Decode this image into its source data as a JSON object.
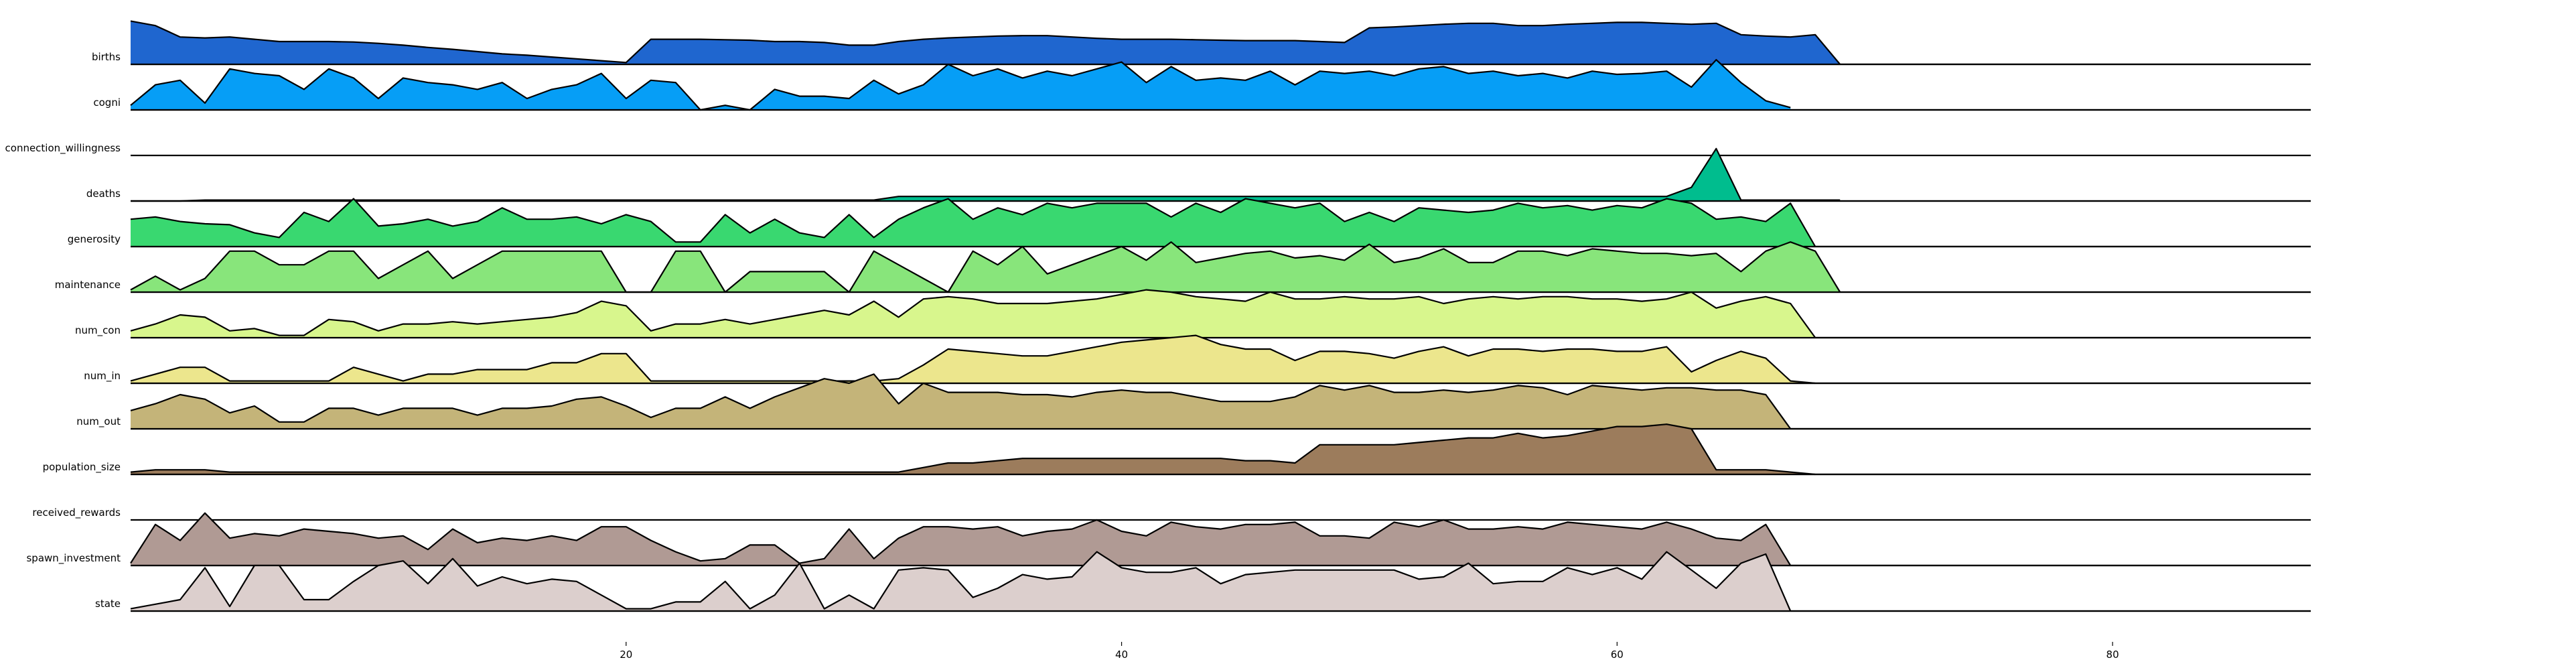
{
  "chart_data": {
    "type": "area",
    "subtype": "ridgeline",
    "title": "",
    "xlabel": "",
    "ylabel": "",
    "xlim": [
      0,
      88
    ],
    "x_ticks": [
      "20",
      "40",
      "60",
      "80"
    ],
    "grid": false,
    "legend": "none",
    "series": [
      {
        "name": "births",
        "color": "#1f66cf",
        "values": [
          0.95,
          0.85,
          0.6,
          0.58,
          0.6,
          0.55,
          0.5,
          0.5,
          0.5,
          0.49,
          0.46,
          0.42,
          0.37,
          0.33,
          0.28,
          0.23,
          0.2,
          0.16,
          0.12,
          0.08,
          0.04,
          0.55,
          0.55,
          0.55,
          0.54,
          0.53,
          0.5,
          0.5,
          0.48,
          0.42,
          0.42,
          0.5,
          0.55,
          0.58,
          0.6,
          0.62,
          0.63,
          0.63,
          0.6,
          0.57,
          0.55,
          0.55,
          0.55,
          0.54,
          0.53,
          0.52,
          0.52,
          0.52,
          0.5,
          0.48,
          0.8,
          0.82,
          0.85,
          0.88,
          0.9,
          0.9,
          0.85,
          0.85,
          0.88,
          0.9,
          0.92,
          0.92,
          0.9,
          0.88,
          0.9,
          0.65,
          0.62,
          0.6,
          0.65,
          0.0
        ]
      },
      {
        "name": "cogni",
        "color": "#069ef6",
        "values": [
          0.1,
          0.55,
          0.65,
          0.15,
          0.9,
          0.8,
          0.75,
          0.45,
          0.9,
          0.7,
          0.25,
          0.7,
          0.6,
          0.55,
          0.45,
          0.6,
          0.25,
          0.45,
          0.55,
          0.8,
          0.25,
          0.65,
          0.6,
          0.0,
          0.1,
          0.0,
          0.45,
          0.3,
          0.3,
          0.25,
          0.65,
          0.35,
          0.55,
          1.0,
          0.75,
          0.9,
          0.7,
          0.85,
          0.75,
          0.9,
          1.05,
          0.6,
          0.95,
          0.65,
          0.7,
          0.65,
          0.85,
          0.55,
          0.85,
          0.8,
          0.85,
          0.75,
          0.9,
          0.95,
          0.8,
          0.85,
          0.75,
          0.8,
          0.7,
          0.85,
          0.78,
          0.8,
          0.85,
          0.5,
          1.1,
          0.6,
          0.2,
          0.05
        ]
      },
      {
        "name": "connection_willingness",
        "color": "#00bd8e",
        "values": [
          0,
          0,
          0,
          0.02,
          0.02,
          0.02,
          0.02,
          0.02,
          0.02,
          0.02,
          0.02,
          0.02,
          0.02,
          0.02,
          0.02,
          0.02,
          0.02,
          0.02,
          0.02,
          0.02,
          0.02,
          0.02,
          0.02,
          0.02,
          0.02,
          0.02,
          0.02,
          0.02,
          0.02,
          0.02,
          0.02,
          0.1,
          0.1,
          0.1,
          0.1,
          0.1,
          0.1,
          0.1,
          0.1,
          0.1,
          0.1,
          0.1,
          0.1,
          0.1,
          0.1,
          0.1,
          0.1,
          0.1,
          0.1,
          0.1,
          0.1,
          0.1,
          0.1,
          0.1,
          0.1,
          0.1,
          0.1,
          0.1,
          0.1,
          0.1,
          0.1,
          0.1,
          0.1,
          0.3,
          1.15,
          0.02,
          0.02,
          0.02,
          0.02,
          0.02
        ]
      },
      {
        "name": "deaths",
        "color": "#39d870",
        "values": [
          0.6,
          0.65,
          0.55,
          0.5,
          0.48,
          0.3,
          0.2,
          0.75,
          0.55,
          1.05,
          0.45,
          0.5,
          0.6,
          0.45,
          0.55,
          0.85,
          0.6,
          0.6,
          0.65,
          0.5,
          0.7,
          0.55,
          0.1,
          0.1,
          0.7,
          0.3,
          0.6,
          0.3,
          0.2,
          0.7,
          0.2,
          0.6,
          0.85,
          1.05,
          0.6,
          0.85,
          0.7,
          0.95,
          0.85,
          0.95,
          0.95,
          0.95,
          0.65,
          0.95,
          0.75,
          1.05,
          0.95,
          0.85,
          0.95,
          0.55,
          0.75,
          0.55,
          0.85,
          0.8,
          0.75,
          0.8,
          0.95,
          0.85,
          0.9,
          0.8,
          0.9,
          0.85,
          1.05,
          0.95,
          0.6,
          0.65,
          0.55,
          0.95,
          0.0
        ]
      },
      {
        "name": "generosity",
        "color": "#88e57b",
        "values": [
          0.05,
          0.35,
          0.05,
          0.3,
          0.9,
          0.9,
          0.6,
          0.6,
          0.9,
          0.9,
          0.3,
          0.6,
          0.9,
          0.3,
          0.6,
          0.9,
          0.9,
          0.9,
          0.9,
          0.9,
          0.0,
          0.0,
          0.9,
          0.9,
          0.0,
          0.45,
          0.45,
          0.45,
          0.45,
          0.0,
          0.9,
          0.6,
          0.3,
          0.0,
          0.9,
          0.6,
          1.0,
          0.4,
          0.6,
          0.8,
          1.0,
          0.7,
          1.1,
          0.65,
          0.75,
          0.85,
          0.9,
          0.75,
          0.8,
          0.7,
          1.05,
          0.65,
          0.75,
          0.95,
          0.65,
          0.65,
          0.9,
          0.9,
          0.8,
          0.95,
          0.9,
          0.85,
          0.85,
          0.8,
          0.85,
          0.45,
          0.9,
          1.1,
          0.9,
          0.0
        ]
      },
      {
        "name": "maintenance",
        "color": "#d8f68d",
        "values": [
          0.15,
          0.3,
          0.5,
          0.45,
          0.15,
          0.2,
          0.05,
          0.05,
          0.4,
          0.35,
          0.15,
          0.3,
          0.3,
          0.35,
          0.3,
          0.35,
          0.4,
          0.45,
          0.55,
          0.8,
          0.7,
          0.15,
          0.3,
          0.3,
          0.4,
          0.3,
          0.4,
          0.5,
          0.6,
          0.5,
          0.8,
          0.45,
          0.85,
          0.9,
          0.85,
          0.75,
          0.75,
          0.75,
          0.8,
          0.85,
          0.95,
          1.05,
          1.0,
          0.9,
          0.85,
          0.8,
          1.0,
          0.85,
          0.85,
          0.9,
          0.85,
          0.85,
          0.9,
          0.75,
          0.85,
          0.9,
          0.85,
          0.9,
          0.9,
          0.85,
          0.85,
          0.8,
          0.85,
          1.0,
          0.65,
          0.8,
          0.9,
          0.75,
          0.0
        ]
      },
      {
        "name": "num_con",
        "color": "#ece68d",
        "values": [
          0.05,
          0.2,
          0.35,
          0.35,
          0.05,
          0.05,
          0.05,
          0.05,
          0.05,
          0.35,
          0.2,
          0.05,
          0.2,
          0.2,
          0.3,
          0.3,
          0.3,
          0.45,
          0.45,
          0.65,
          0.65,
          0.05,
          0.05,
          0.05,
          0.05,
          0.05,
          0.05,
          0.05,
          0.05,
          0.05,
          0.05,
          0.1,
          0.4,
          0.75,
          0.7,
          0.65,
          0.6,
          0.6,
          0.7,
          0.8,
          0.9,
          0.95,
          1.0,
          1.05,
          0.85,
          0.75,
          0.75,
          0.5,
          0.7,
          0.7,
          0.65,
          0.55,
          0.7,
          0.8,
          0.6,
          0.75,
          0.75,
          0.7,
          0.75,
          0.75,
          0.7,
          0.7,
          0.8,
          0.25,
          0.5,
          0.7,
          0.55,
          0.05,
          0.0
        ]
      },
      {
        "name": "num_in",
        "color": "#c4b479",
        "values": [
          0.4,
          0.55,
          0.75,
          0.65,
          0.35,
          0.5,
          0.15,
          0.15,
          0.45,
          0.45,
          0.3,
          0.45,
          0.45,
          0.45,
          0.3,
          0.45,
          0.45,
          0.5,
          0.65,
          0.7,
          0.5,
          0.25,
          0.45,
          0.45,
          0.7,
          0.45,
          0.7,
          0.9,
          1.1,
          1.0,
          1.2,
          0.55,
          1.0,
          0.8,
          0.8,
          0.8,
          0.75,
          0.75,
          0.7,
          0.8,
          0.85,
          0.8,
          0.8,
          0.7,
          0.6,
          0.6,
          0.6,
          0.7,
          0.95,
          0.85,
          0.95,
          0.8,
          0.8,
          0.85,
          0.8,
          0.85,
          0.95,
          0.9,
          0.75,
          0.95,
          0.9,
          0.85,
          0.9,
          0.9,
          0.85,
          0.85,
          0.75,
          0.0
        ]
      },
      {
        "name": "num_out",
        "color": "#9c7c5c",
        "values": [
          0.05,
          0.1,
          0.1,
          0.1,
          0.05,
          0.05,
          0.05,
          0.05,
          0.05,
          0.05,
          0.05,
          0.05,
          0.05,
          0.05,
          0.05,
          0.05,
          0.05,
          0.05,
          0.05,
          0.05,
          0.05,
          0.05,
          0.05,
          0.05,
          0.05,
          0.05,
          0.05,
          0.05,
          0.05,
          0.05,
          0.05,
          0.05,
          0.15,
          0.25,
          0.25,
          0.3,
          0.35,
          0.35,
          0.35,
          0.35,
          0.35,
          0.35,
          0.35,
          0.35,
          0.35,
          0.3,
          0.3,
          0.25,
          0.65,
          0.65,
          0.65,
          0.65,
          0.7,
          0.75,
          0.8,
          0.8,
          0.9,
          0.8,
          0.85,
          0.95,
          1.05,
          1.05,
          1.1,
          1.0,
          0.1,
          0.1,
          0.1,
          0.05,
          0.0
        ]
      },
      {
        "name": "population_size",
        "color": "#b09a94",
        "values": [
          0.1,
          0.15,
          0.15,
          0.15,
          0.15,
          0.15,
          0.15,
          0.15,
          0.15,
          0.15,
          0.15,
          0.15,
          0.15,
          0.15,
          0.15,
          0.15,
          0.15,
          0.15,
          0.15,
          0.15,
          0.15,
          0.15,
          0.15,
          0.15,
          0.15,
          0.15,
          0.15,
          0.15,
          0.15,
          0.15,
          0.15,
          0.15,
          0.15,
          0.15,
          0.15,
          0.15,
          0.15,
          0.15,
          0.15,
          0.15,
          0.15,
          0.15,
          0.15,
          0.15,
          0.15,
          0.15,
          0.15,
          0.15,
          0.15,
          0.15,
          0.15,
          0.15,
          0.15,
          0.15,
          0.15,
          0.15,
          0.15,
          0.15,
          0.15,
          0.15,
          0.15,
          0.15,
          0.15,
          0.15,
          0.15,
          0.15,
          0.15,
          0.15,
          0.05
        ]
      },
      {
        "name": "received_rewards",
        "color": "#d6cac8",
        "values": [
          0.05,
          0.9,
          0.55,
          1.15,
          0.6,
          0.7,
          0.65,
          0.8,
          0.75,
          0.7,
          0.6,
          0.65,
          0.35,
          0.8,
          0.5,
          0.6,
          0.55,
          0.65,
          0.55,
          0.85,
          0.85,
          0.55,
          0.3,
          0.1,
          0.15,
          0.45,
          0.45,
          0.05,
          0.15,
          0.8,
          0.15,
          0.6,
          0.85,
          0.85,
          0.8,
          0.85,
          0.65,
          0.75,
          0.8,
          1.0,
          0.75,
          0.65,
          0.95,
          0.85,
          0.8,
          0.9,
          0.9,
          0.95,
          0.65,
          0.65,
          0.6,
          0.95,
          0.85,
          1.0,
          0.8,
          0.8,
          0.85,
          0.8,
          0.95,
          0.9,
          0.85,
          0.8,
          0.95,
          0.8,
          0.6,
          0.55,
          0.9,
          0.0
        ]
      },
      {
        "name": "spawn_investment",
        "color": "#ffffff",
        "values": [
          0,
          0,
          0,
          0,
          0,
          0,
          0,
          0,
          0,
          0,
          0,
          0,
          0,
          0,
          0,
          0,
          0,
          0,
          0,
          0,
          0,
          0,
          0,
          0,
          0,
          0,
          0,
          0,
          0,
          0,
          0,
          0,
          0,
          0,
          0,
          0,
          0,
          0,
          0,
          0,
          0,
          0,
          0,
          0,
          0,
          0,
          0,
          0,
          0,
          0,
          0,
          0,
          0,
          0,
          0,
          0,
          0,
          0,
          0,
          0,
          0,
          0,
          0,
          0,
          0,
          0,
          0,
          0,
          0
        ]
      },
      {
        "name": "state",
        "color": "#ffffff",
        "values": [
          0,
          0,
          0,
          0,
          0,
          0,
          0,
          0,
          0,
          0,
          0,
          0,
          0,
          0,
          0,
          0,
          0,
          0,
          0,
          0,
          0,
          0,
          0,
          0,
          0,
          0,
          0,
          0,
          0,
          0,
          0,
          0,
          0,
          0,
          0,
          0,
          0,
          0,
          0,
          0,
          0,
          0,
          0,
          0,
          0,
          0,
          0,
          0,
          0,
          0,
          0,
          0,
          0,
          0,
          0,
          0,
          0,
          0,
          0,
          0,
          0,
          0,
          0,
          0,
          0,
          0,
          0,
          0,
          0
        ]
      }
    ]
  },
  "state_series": {
    "values": [
      0.05,
      0.15,
      0.25,
      0.95,
      0.1,
      1.0,
      1.0,
      0.25,
      0.25,
      0.65,
      1.0,
      1.1,
      0.6,
      1.15,
      0.55,
      0.75,
      0.6,
      0.7,
      0.65,
      0.35,
      0.05,
      0.05,
      0.2,
      0.2,
      0.65,
      0.05,
      0.35,
      1.05,
      0.05,
      0.35,
      0.05,
      0.9,
      0.95,
      0.9,
      0.3,
      0.5,
      0.8,
      0.7,
      0.75,
      1.3,
      0.95,
      0.85,
      0.85,
      0.95,
      0.6,
      0.8,
      0.85,
      0.9,
      0.9,
      0.9,
      0.9,
      0.9,
      0.7,
      0.75,
      1.05,
      0.6,
      0.65,
      0.65,
      0.95,
      0.8,
      0.95,
      0.7,
      1.3,
      0.9,
      0.5,
      1.05,
      1.25,
      0.0
    ],
    "color": "#dccfcd"
  }
}
